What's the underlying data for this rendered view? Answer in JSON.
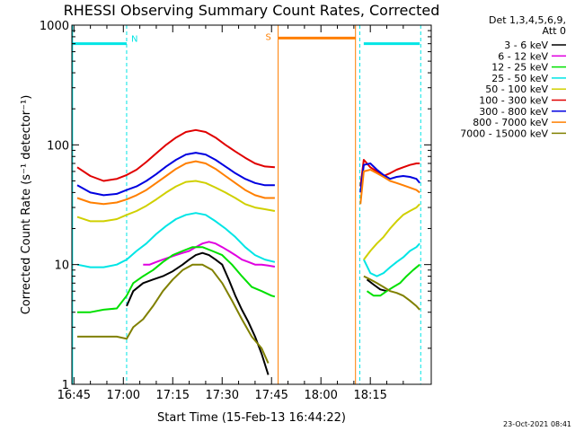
{
  "chart_data": {
    "type": "line",
    "title": "RHESSI Observing Summary Count Rates, Corrected",
    "xlabel": "Start Time (15-Feb-13 16:44:22)",
    "ylabel": "Corrected Count Rate (s⁻¹ detector⁻¹)",
    "x_ticks": [
      "16:45",
      "17:00",
      "17:15",
      "17:30",
      "17:45",
      "18:00",
      "18:15"
    ],
    "x_tick_minutes": [
      45,
      60,
      75,
      90,
      105,
      120,
      135
    ],
    "y_ticks": [
      "1",
      "10",
      "100",
      "1000"
    ],
    "y_tick_values": [
      1,
      10,
      100,
      1000
    ],
    "xlim_minutes": [
      44.37,
      153.5
    ],
    "ylim": [
      1,
      1000
    ],
    "y_scale": "log",
    "legend_header": [
      "Det 1,3,4,5,6,9,",
      "Att 0"
    ],
    "legend_position": "right",
    "footer_timestamp": "23-Oct-2021 08:41",
    "flag_labels": {
      "night": "N",
      "saa": "S"
    },
    "flags": [
      {
        "name": "N",
        "color": "#00e5e5",
        "start": 44.37,
        "end": 61.0,
        "y": 700,
        "style": "solid"
      },
      {
        "name": "S",
        "color": "#ff7f00",
        "start": 107.0,
        "end": 130.5,
        "y": 780,
        "style": "solid"
      },
      {
        "name": "N",
        "color": "#00e5e5",
        "start": 133.0,
        "end": 150.0,
        "y": 700,
        "style": "solid"
      }
    ],
    "vertical_lines": [
      {
        "x": 44.6,
        "color": "#00e5e5",
        "style": "solid"
      },
      {
        "x": 61.0,
        "color": "#00e5e5",
        "style": "dashed"
      },
      {
        "x": 107.0,
        "color": "#ff7f00",
        "style": "solid"
      },
      {
        "x": 130.5,
        "color": "#ff7f00",
        "style": "solid"
      },
      {
        "x": 131.8,
        "color": "#00e5e5",
        "style": "dashed"
      },
      {
        "x": 150.3,
        "color": "#00e5e5",
        "style": "dashed"
      }
    ],
    "series": [
      {
        "name": "3 - 6 keV",
        "color": "#000000",
        "segments": [
          {
            "x": [
              61,
              63,
              66,
              69,
              72,
              75,
              78,
              80,
              82,
              84,
              86,
              88,
              90,
              92,
              94,
              96,
              98,
              100,
              102,
              104
            ],
            "y": [
              4.5,
              6,
              7,
              7.5,
              8,
              8.8,
              10,
              11,
              12,
              12.5,
              12,
              11,
              10,
              7.5,
              5.5,
              4.2,
              3.3,
              2.5,
              1.8,
              1.2
            ]
          },
          {
            "x": [
              134,
              136,
              138,
              140
            ],
            "y": [
              7.5,
              6.8,
              6.2,
              6.0
            ]
          }
        ]
      },
      {
        "name": "6 - 12 keV",
        "color": "#e000e0",
        "segments": [
          {
            "x": [
              66,
              68,
              70,
              72,
              74,
              76,
              78,
              80,
              82,
              84,
              86,
              88,
              90,
              92,
              94,
              96,
              98,
              100,
              102,
              104,
              106
            ],
            "y": [
              10,
              10,
              10.5,
              11,
              11.5,
              12,
              12.5,
              13,
              14,
              15,
              15.5,
              15,
              14,
              13,
              12,
              11,
              10.5,
              10,
              10,
              9.8,
              9.6
            ]
          }
        ]
      },
      {
        "name": "12 - 25 keV",
        "color": "#00e000",
        "segments": [
          {
            "x": [
              46,
              50,
              54,
              58,
              61,
              63,
              66,
              69,
              72,
              75,
              78,
              81,
              84,
              87,
              90,
              93,
              96,
              99,
              102,
              105,
              106
            ],
            "y": [
              4.0,
              4.0,
              4.2,
              4.3,
              5.5,
              7.0,
              8.0,
              9.0,
              10.5,
              12,
              13,
              14,
              14,
              13,
              12,
              10,
              8,
              6.5,
              6.0,
              5.5,
              5.4
            ]
          },
          {
            "x": [
              134,
              136,
              138,
              140,
              142,
              144,
              146,
              148,
              150
            ],
            "y": [
              6.0,
              5.5,
              5.5,
              6.0,
              6.5,
              7.0,
              8.0,
              9.0,
              10
            ]
          }
        ]
      },
      {
        "name": "25 - 50 keV",
        "color": "#00e5e5",
        "segments": [
          {
            "x": [
              46,
              50,
              54,
              58,
              61,
              64,
              67,
              70,
              73,
              76,
              79,
              82,
              85,
              88,
              91,
              94,
              97,
              100,
              103,
              106
            ],
            "y": [
              10,
              9.5,
              9.5,
              10,
              11,
              13,
              15,
              18,
              21,
              24,
              26,
              27,
              26,
              23,
              20,
              17,
              14,
              12,
              11,
              10.5
            ]
          },
          {
            "x": [
              133,
              135,
              137,
              139,
              141,
              143,
              145,
              147,
              149,
              150
            ],
            "y": [
              11,
              8.5,
              8.0,
              8.5,
              9.5,
              10.5,
              11.5,
              13,
              14,
              15
            ]
          }
        ]
      },
      {
        "name": "50 - 100 keV",
        "color": "#d0d000",
        "segments": [
          {
            "x": [
              46,
              50,
              54,
              58,
              61,
              64,
              67,
              70,
              73,
              76,
              79,
              82,
              85,
              88,
              91,
              94,
              97,
              100,
              103,
              106
            ],
            "y": [
              25,
              23,
              23,
              24,
              26,
              28,
              31,
              35,
              40,
              45,
              49,
              50,
              48,
              44,
              40,
              36,
              32,
              30,
              29,
              28
            ]
          },
          {
            "x": [
              133,
              135,
              137,
              139,
              141,
              143,
              145,
              147,
              149,
              150
            ],
            "y": [
              11,
              13,
              15,
              17,
              20,
              23,
              26,
              28,
              30,
              32
            ]
          }
        ]
      },
      {
        "name": "100 - 300 keV",
        "color": "#e00000",
        "segments": [
          {
            "x": [
              46,
              50,
              54,
              58,
              61,
              64,
              67,
              70,
              73,
              76,
              79,
              82,
              85,
              88,
              91,
              94,
              97,
              100,
              103,
              106
            ],
            "y": [
              65,
              55,
              50,
              52,
              56,
              62,
              72,
              85,
              100,
              115,
              128,
              133,
              128,
              115,
              100,
              88,
              78,
              70,
              66,
              65
            ]
          },
          {
            "x": [
              132,
              133,
              134,
              135,
              137,
              139,
              141,
              143,
              145,
              147,
              149,
              150
            ],
            "y": [
              45,
              75,
              70,
              65,
              60,
              55,
              58,
              62,
              65,
              68,
              70,
              70
            ]
          }
        ]
      },
      {
        "name": "300 - 800 keV",
        "color": "#0000e0",
        "segments": [
          {
            "x": [
              46,
              50,
              54,
              58,
              61,
              64,
              67,
              70,
              73,
              76,
              79,
              82,
              85,
              88,
              91,
              94,
              97,
              100,
              103,
              106
            ],
            "y": [
              46,
              40,
              38,
              39,
              42,
              45,
              50,
              57,
              66,
              75,
              83,
              86,
              83,
              75,
              66,
              58,
              52,
              48,
              46,
              46
            ]
          },
          {
            "x": [
              132,
              133,
              135,
              137,
              139,
              141,
              143,
              145,
              147,
              149,
              150
            ],
            "y": [
              40,
              68,
              70,
              62,
              56,
              52,
              54,
              55,
              54,
              52,
              48
            ]
          }
        ]
      },
      {
        "name": "800 - 7000 keV",
        "color": "#ff7f00",
        "segments": [
          {
            "x": [
              46,
              50,
              54,
              58,
              61,
              64,
              67,
              70,
              73,
              76,
              79,
              82,
              85,
              88,
              91,
              94,
              97,
              100,
              103,
              106
            ],
            "y": [
              36,
              33,
              32,
              33,
              35,
              38,
              42,
              48,
              55,
              63,
              70,
              73,
              70,
              63,
              55,
              48,
              42,
              38,
              36,
              36
            ]
          },
          {
            "x": [
              132,
              133,
              135,
              137,
              139,
              141,
              143,
              145,
              147,
              149,
              150
            ],
            "y": [
              32,
              60,
              62,
              58,
              54,
              50,
              48,
              46,
              44,
              42,
              40
            ]
          }
        ]
      },
      {
        "name": "7000 - 15000 keV",
        "color": "#808000",
        "segments": [
          {
            "x": [
              46,
              50,
              54,
              58,
              61,
              63,
              66,
              69,
              72,
              75,
              78,
              81,
              84,
              87,
              90,
              93,
              96,
              99,
              102,
              104
            ],
            "y": [
              2.5,
              2.5,
              2.5,
              2.5,
              2.4,
              3.0,
              3.5,
              4.5,
              6.0,
              7.5,
              9.0,
              10,
              10,
              9.0,
              7.0,
              5.0,
              3.5,
              2.5,
              2.0,
              1.5
            ]
          },
          {
            "x": [
              133,
              135,
              137,
              139,
              141,
              143,
              145,
              147,
              149,
              150
            ],
            "y": [
              8.0,
              7.5,
              7.0,
              6.5,
              6.0,
              5.8,
              5.5,
              5.0,
              4.5,
              4.2
            ]
          }
        ]
      }
    ]
  }
}
